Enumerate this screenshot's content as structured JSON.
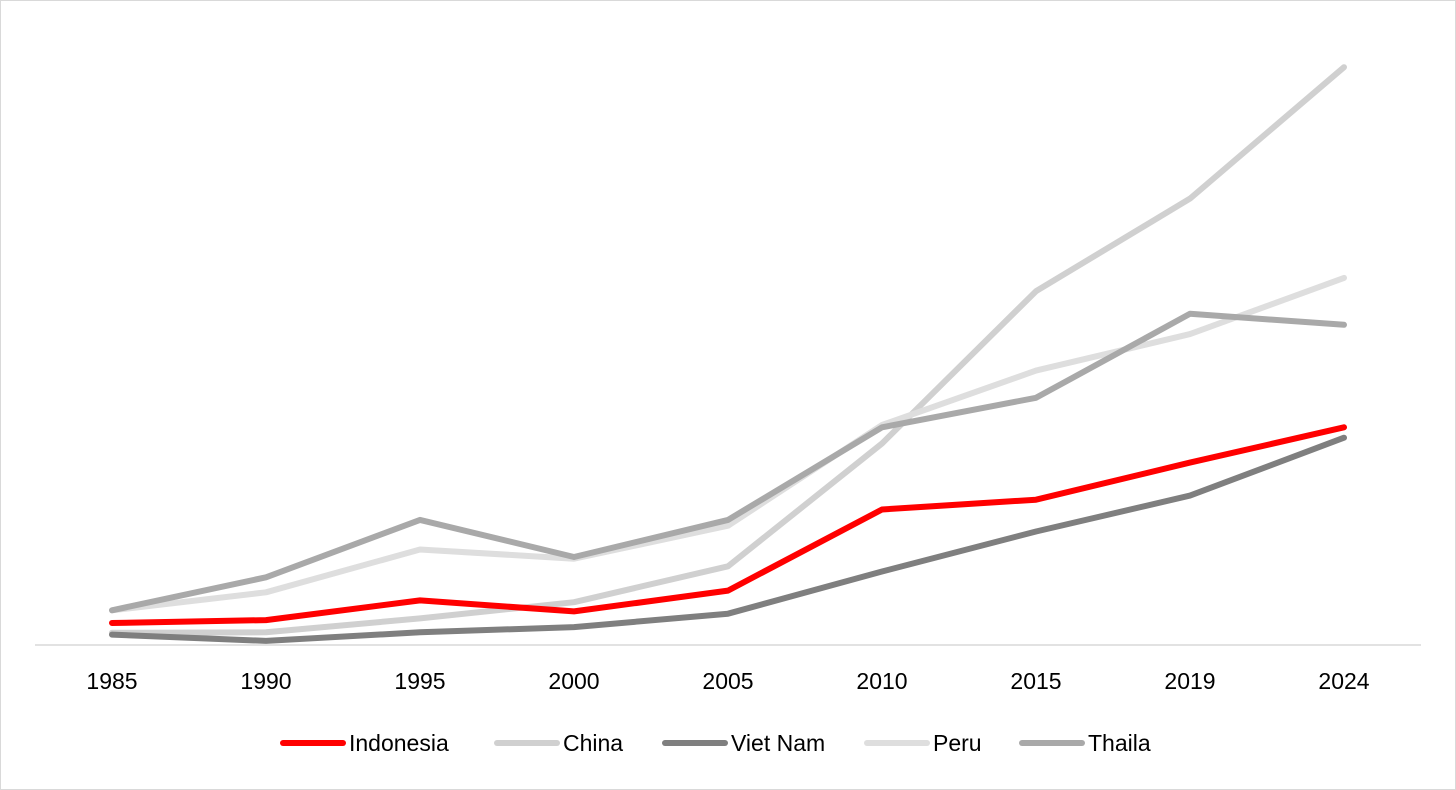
{
  "chart_data": {
    "type": "line",
    "title": "",
    "xlabel": "",
    "ylabel": "",
    "categories": [
      "1985",
      "1990",
      "1995",
      "2000",
      "2005",
      "2010",
      "2015",
      "2019",
      "2024"
    ],
    "ylim": [
      0,
      100
    ],
    "grid": false,
    "y_axis_shown": false,
    "legend_position": "bottom",
    "series": [
      {
        "name": "Indonesia",
        "color": "#ff0000",
        "values": [
          3.8,
          4.3,
          7.7,
          5.8,
          9.4,
          23.4,
          25.1,
          31.5,
          37.6
        ]
      },
      {
        "name": "China",
        "color": "#d0d0d0",
        "values": [
          2.1,
          2.2,
          4.6,
          7.4,
          13.6,
          34.8,
          61.1,
          77.1,
          99.8
        ]
      },
      {
        "name": "Viet Nam",
        "color": "#7f7f7f",
        "values": [
          1.8,
          0.7,
          2.2,
          3.1,
          5.4,
          12.7,
          19.6,
          25.8,
          35.8
        ]
      },
      {
        "name": "Peru",
        "color": "#dedede",
        "values": [
          6.0,
          9.1,
          16.5,
          14.9,
          20.6,
          38.0,
          47.4,
          53.7,
          63.4
        ]
      },
      {
        "name": "Thaila",
        "color": "#a9a9a9",
        "values": [
          6.0,
          11.7,
          21.6,
          15.2,
          21.6,
          37.6,
          42.7,
          57.2,
          55.3
        ]
      }
    ]
  }
}
